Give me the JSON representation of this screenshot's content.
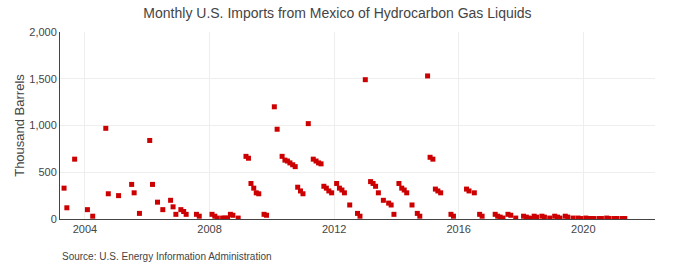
{
  "chart_data": {
    "type": "scatter",
    "title": "Monthly U.S. Imports from Mexico of Hydrocarbon Gas Liquids",
    "y_label": "Thousand Barrels",
    "annotations": [
      "Source: U.S. Energy Information Administration"
    ],
    "color": "#cc0000",
    "marker": "square",
    "grid": true,
    "xlim": [
      2003.2,
      2022.3
    ],
    "xticks": [
      2004,
      2008,
      2012,
      2016,
      2020
    ],
    "ylim": [
      0,
      2000
    ],
    "yticks": [
      0,
      500,
      {
        "value": 1000,
        "label": "1,000"
      },
      {
        "value": 1500,
        "label": "1,500"
      },
      {
        "value": 2000,
        "label": "2,000"
      }
    ],
    "x": [
      2003.33,
      2003.42,
      2003.67,
      2004.08,
      2004.25,
      2004.67,
      2004.75,
      2005.08,
      2005.5,
      2005.58,
      2005.75,
      2006.08,
      2006.17,
      2006.33,
      2006.5,
      2006.75,
      2006.83,
      2006.92,
      2007.08,
      2007.17,
      2007.25,
      2007.58,
      2007.67,
      2008.08,
      2008.17,
      2008.25,
      2008.42,
      2008.5,
      2008.58,
      2008.67,
      2008.75,
      2008.92,
      2009.17,
      2009.25,
      2009.33,
      2009.42,
      2009.5,
      2009.58,
      2009.75,
      2009.83,
      2010.08,
      2010.17,
      2010.33,
      2010.42,
      2010.5,
      2010.58,
      2010.67,
      2010.75,
      2010.83,
      2010.92,
      2011.0,
      2011.17,
      2011.33,
      2011.42,
      2011.5,
      2011.58,
      2011.67,
      2011.75,
      2011.83,
      2011.92,
      2012.08,
      2012.17,
      2012.25,
      2012.33,
      2012.5,
      2012.75,
      2012.83,
      2013.0,
      2013.17,
      2013.25,
      2013.33,
      2013.42,
      2013.58,
      2013.75,
      2013.83,
      2013.92,
      2014.08,
      2014.17,
      2014.25,
      2014.33,
      2014.5,
      2014.67,
      2014.75,
      2015.0,
      2015.08,
      2015.17,
      2015.25,
      2015.33,
      2015.42,
      2015.75,
      2015.83,
      2016.25,
      2016.33,
      2016.5,
      2016.67,
      2016.75,
      2017.17,
      2017.25,
      2017.33,
      2017.42,
      2017.58,
      2017.67,
      2017.83,
      2018.08,
      2018.17,
      2018.25,
      2018.33,
      2018.42,
      2018.5,
      2018.67,
      2018.75,
      2018.92,
      2019.08,
      2019.17,
      2019.25,
      2019.42,
      2019.5,
      2019.67,
      2019.83,
      2019.92,
      2020.08,
      2020.17,
      2020.25,
      2020.33,
      2020.5,
      2020.58,
      2020.75,
      2020.83,
      2021.0,
      2021.08,
      2021.25,
      2021.33
    ],
    "values": [
      330,
      120,
      640,
      100,
      30,
      970,
      270,
      250,
      370,
      280,
      60,
      840,
      370,
      180,
      100,
      200,
      130,
      50,
      100,
      80,
      50,
      50,
      30,
      50,
      30,
      10,
      10,
      10,
      10,
      50,
      40,
      10,
      670,
      650,
      380,
      330,
      280,
      270,
      50,
      40,
      1200,
      960,
      670,
      630,
      620,
      600,
      580,
      560,
      340,
      300,
      270,
      1020,
      640,
      620,
      600,
      590,
      350,
      330,
      300,
      280,
      380,
      330,
      310,
      280,
      150,
      60,
      30,
      1490,
      400,
      380,
      350,
      280,
      200,
      170,
      150,
      50,
      380,
      330,
      310,
      280,
      150,
      60,
      30,
      1530,
      660,
      640,
      320,
      300,
      280,
      50,
      30,
      320,
      300,
      280,
      50,
      30,
      50,
      30,
      20,
      10,
      50,
      40,
      10,
      30,
      20,
      10,
      5,
      30,
      20,
      30,
      20,
      10,
      30,
      20,
      10,
      30,
      20,
      10,
      10,
      5,
      10,
      5,
      5,
      5,
      5,
      5,
      10,
      5,
      5,
      5,
      5,
      5
    ]
  }
}
